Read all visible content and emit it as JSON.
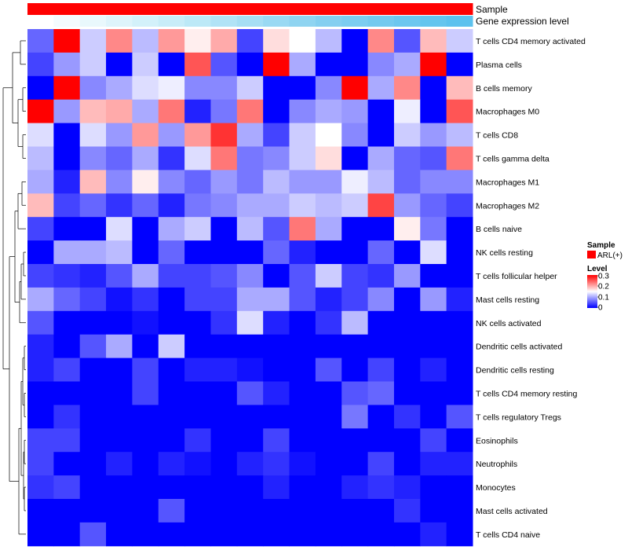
{
  "chart_data": {
    "type": "heatmap",
    "annotation_tracks": [
      {
        "name": "Sample",
        "values_label": "ARL(+)",
        "color": "#ff0000"
      },
      {
        "name": "Gene expression level",
        "gradient": [
          "#ffffff",
          "#c4ecf8",
          "#87d0f0",
          "#5cc2ee"
        ]
      }
    ],
    "legend": {
      "sample_title": "Sample",
      "sample_entry": "ARL(+)",
      "sample_color": "#ff0000",
      "level_title": "Level",
      "level_ticks": [
        "0.3",
        "0.2",
        "0.1",
        "0"
      ]
    },
    "colorscale": {
      "min": 0,
      "max": 0.3,
      "low": "#0000ff",
      "mid": "#ffffff",
      "high": "#ff0000"
    },
    "columns": 17,
    "rows": [
      {
        "label": "T cells CD4 memory activated",
        "values": [
          0.06,
          0.3,
          0.12,
          0.22,
          0.11,
          0.21,
          0.16,
          0.2,
          0.04,
          0.17,
          0.15,
          0.11,
          0.0,
          0.22,
          0.05,
          0.19,
          0.12
        ]
      },
      {
        "label": "Plasma cells",
        "values": [
          0.04,
          0.09,
          0.12,
          0.0,
          0.12,
          0.0,
          0.25,
          0.05,
          0.0,
          0.3,
          0.1,
          0.0,
          0.0,
          0.08,
          0.1,
          0.3,
          0.0
        ]
      },
      {
        "label": "B cells memory",
        "values": [
          0.0,
          0.3,
          0.08,
          0.1,
          0.13,
          0.14,
          0.08,
          0.08,
          0.12,
          0.0,
          0.0,
          0.08,
          0.3,
          0.1,
          0.22,
          0.0,
          0.19
        ]
      },
      {
        "label": "Macrophages M0",
        "values": [
          0.3,
          0.09,
          0.19,
          0.2,
          0.1,
          0.23,
          0.02,
          0.07,
          0.23,
          0.0,
          0.08,
          0.1,
          0.09,
          0.0,
          0.14,
          0.0,
          0.25
        ]
      },
      {
        "label": "T cells CD8",
        "values": [
          0.13,
          0.0,
          0.13,
          0.09,
          0.21,
          0.09,
          0.21,
          0.27,
          0.1,
          0.04,
          0.12,
          0.15,
          0.08,
          0.0,
          0.12,
          0.09,
          0.11
        ]
      },
      {
        "label": "T cells gamma delta",
        "values": [
          0.11,
          0.0,
          0.08,
          0.06,
          0.1,
          0.03,
          0.13,
          0.23,
          0.07,
          0.08,
          0.12,
          0.17,
          0.0,
          0.1,
          0.06,
          0.05,
          0.23
        ]
      },
      {
        "label": "Macrophages M1",
        "values": [
          0.1,
          0.02,
          0.19,
          0.08,
          0.16,
          0.08,
          0.06,
          0.09,
          0.07,
          0.11,
          0.09,
          0.09,
          0.14,
          0.11,
          0.06,
          0.08,
          0.08
        ]
      },
      {
        "label": "Macrophages M2",
        "values": [
          0.19,
          0.04,
          0.06,
          0.03,
          0.06,
          0.02,
          0.07,
          0.08,
          0.1,
          0.1,
          0.12,
          0.11,
          0.12,
          0.26,
          0.09,
          0.06,
          0.04
        ]
      },
      {
        "label": "B cells naive",
        "values": [
          0.04,
          0.0,
          0.0,
          0.13,
          0.0,
          0.1,
          0.12,
          0.0,
          0.11,
          0.05,
          0.23,
          0.1,
          0.0,
          0.0,
          0.16,
          0.07,
          0.0
        ]
      },
      {
        "label": "NK cells resting",
        "values": [
          0.0,
          0.1,
          0.1,
          0.11,
          0.0,
          0.06,
          0.0,
          0.0,
          0.0,
          0.06,
          0.02,
          0.0,
          0.0,
          0.06,
          0.0,
          0.13,
          0.0
        ]
      },
      {
        "label": "T cells follicular helper",
        "values": [
          0.04,
          0.03,
          0.02,
          0.05,
          0.1,
          0.04,
          0.04,
          0.05,
          0.08,
          0.0,
          0.05,
          0.12,
          0.04,
          0.03,
          0.09,
          0.0,
          0.0
        ]
      },
      {
        "label": "Mast cells resting",
        "values": [
          0.1,
          0.06,
          0.04,
          0.01,
          0.03,
          0.0,
          0.04,
          0.04,
          0.1,
          0.1,
          0.05,
          0.02,
          0.04,
          0.08,
          0.0,
          0.09,
          0.02
        ]
      },
      {
        "label": "NK cells activated",
        "values": [
          0.05,
          0.0,
          0.0,
          0.0,
          0.01,
          0.0,
          0.0,
          0.03,
          0.13,
          0.02,
          0.0,
          0.03,
          0.11,
          0.0,
          0.0,
          0.0,
          0.0
        ]
      },
      {
        "label": "Dendritic cells activated",
        "values": [
          0.02,
          0.0,
          0.05,
          0.1,
          0.0,
          0.12,
          0.0,
          0.0,
          0.0,
          0.0,
          0.0,
          0.0,
          0.0,
          0.0,
          0.0,
          0.0,
          0.0
        ]
      },
      {
        "label": "Dendritic cells resting",
        "values": [
          0.02,
          0.04,
          0.0,
          0.0,
          0.04,
          0.0,
          0.02,
          0.02,
          0.01,
          0.0,
          0.0,
          0.05,
          0.0,
          0.04,
          0.0,
          0.02,
          0.0
        ]
      },
      {
        "label": "T cells CD4 memory resting",
        "values": [
          0.0,
          0.0,
          0.0,
          0.0,
          0.04,
          0.0,
          0.0,
          0.0,
          0.05,
          0.02,
          0.0,
          0.0,
          0.05,
          0.06,
          0.0,
          0.0,
          0.0
        ]
      },
      {
        "label": "T cells regulatory  Tregs",
        "values": [
          0.0,
          0.03,
          0.0,
          0.0,
          0.0,
          0.0,
          0.0,
          0.0,
          0.0,
          0.0,
          0.0,
          0.0,
          0.07,
          0.0,
          0.03,
          0.0,
          0.05
        ]
      },
      {
        "label": "Eosinophils",
        "values": [
          0.04,
          0.04,
          0.0,
          0.0,
          0.0,
          0.0,
          0.03,
          0.0,
          0.0,
          0.04,
          0.0,
          0.0,
          0.0,
          0.0,
          0.0,
          0.04,
          0.0
        ]
      },
      {
        "label": "Neutrophils",
        "values": [
          0.04,
          0.0,
          0.0,
          0.02,
          0.0,
          0.02,
          0.01,
          0.0,
          0.02,
          0.03,
          0.01,
          0.0,
          0.0,
          0.04,
          0.0,
          0.02,
          0.02
        ]
      },
      {
        "label": "Monocytes",
        "values": [
          0.03,
          0.04,
          0.0,
          0.0,
          0.0,
          0.0,
          0.0,
          0.0,
          0.0,
          0.02,
          0.0,
          0.0,
          0.02,
          0.03,
          0.02,
          0.0,
          0.0
        ]
      },
      {
        "label": "Mast cells activated",
        "values": [
          0.0,
          0.0,
          0.0,
          0.0,
          0.0,
          0.05,
          0.0,
          0.0,
          0.0,
          0.0,
          0.0,
          0.0,
          0.0,
          0.0,
          0.03,
          0.0,
          0.0
        ]
      },
      {
        "label": "T cells CD4 naive",
        "values": [
          0.0,
          0.0,
          0.05,
          0.0,
          0.0,
          0.0,
          0.0,
          0.0,
          0.0,
          0.0,
          0.0,
          0.0,
          0.0,
          0.0,
          0.0,
          0.02,
          0.0
        ]
      }
    ]
  }
}
